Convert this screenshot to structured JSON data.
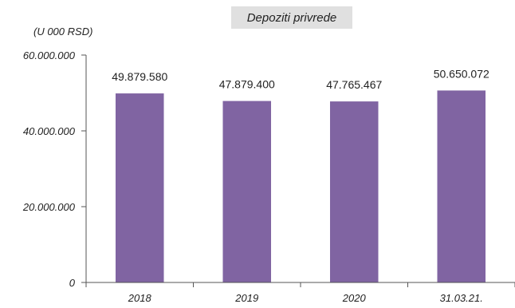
{
  "chart_data": {
    "type": "bar",
    "title": "Depoziti privrede",
    "unit_label": "(U 000 RSD)",
    "categories": [
      "2018",
      "2019",
      "2020",
      "31.03.21."
    ],
    "values": [
      49879580,
      47879400,
      47765467,
      50650072
    ],
    "value_labels": [
      "49.879.580",
      "47.879.400",
      "47.765.467",
      "50.650.072"
    ],
    "ylim": [
      0,
      60000000
    ],
    "yticks": [
      0,
      20000000,
      40000000,
      60000000
    ],
    "ytick_labels": [
      "0",
      "20.000.000",
      "40.000.000",
      "60.000.000"
    ],
    "bar_color": "#8064a2",
    "grid": false,
    "legend": "none"
  }
}
